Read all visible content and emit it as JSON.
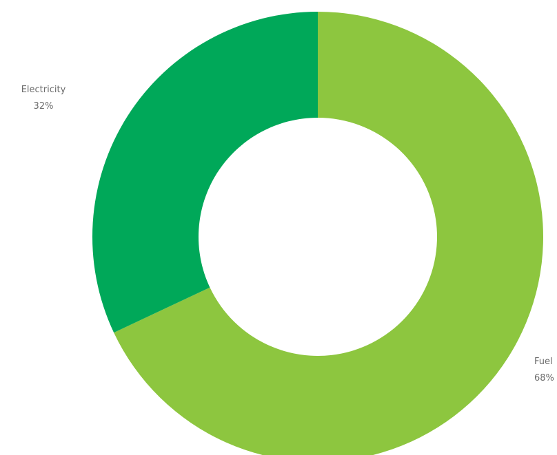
{
  "chart_data": {
    "type": "pie",
    "variant": "donut",
    "title": "",
    "slices": [
      {
        "label": "Fuel",
        "percent_label": "68%",
        "value": 68,
        "color": "#8dc63f"
      },
      {
        "label": "Electricity",
        "percent_label": "32%",
        "value": 32,
        "color": "#00a859"
      }
    ],
    "start_angle_deg": 0,
    "direction": "clockwise",
    "legend": "none",
    "labels": "outside"
  }
}
